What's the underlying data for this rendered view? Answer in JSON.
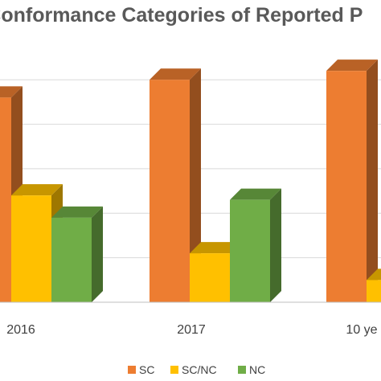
{
  "chart_data": {
    "type": "bar",
    "title": "nConformance Categories of Reported P",
    "categories": [
      "2016",
      "2017",
      "10 ye"
    ],
    "series": [
      {
        "name": "SC",
        "values": [
          46,
          50,
          52
        ],
        "color": "#ED7D31"
      },
      {
        "name": "SC/NC",
        "values": [
          24,
          11,
          5
        ],
        "color": "#FFC000"
      },
      {
        "name": "NC",
        "values": [
          19,
          23,
          null
        ],
        "color": "#70AD47"
      }
    ],
    "ylim": [
      0,
      56
    ],
    "grid": true,
    "legend": "bottom",
    "xlabel": "",
    "ylabel": ""
  }
}
